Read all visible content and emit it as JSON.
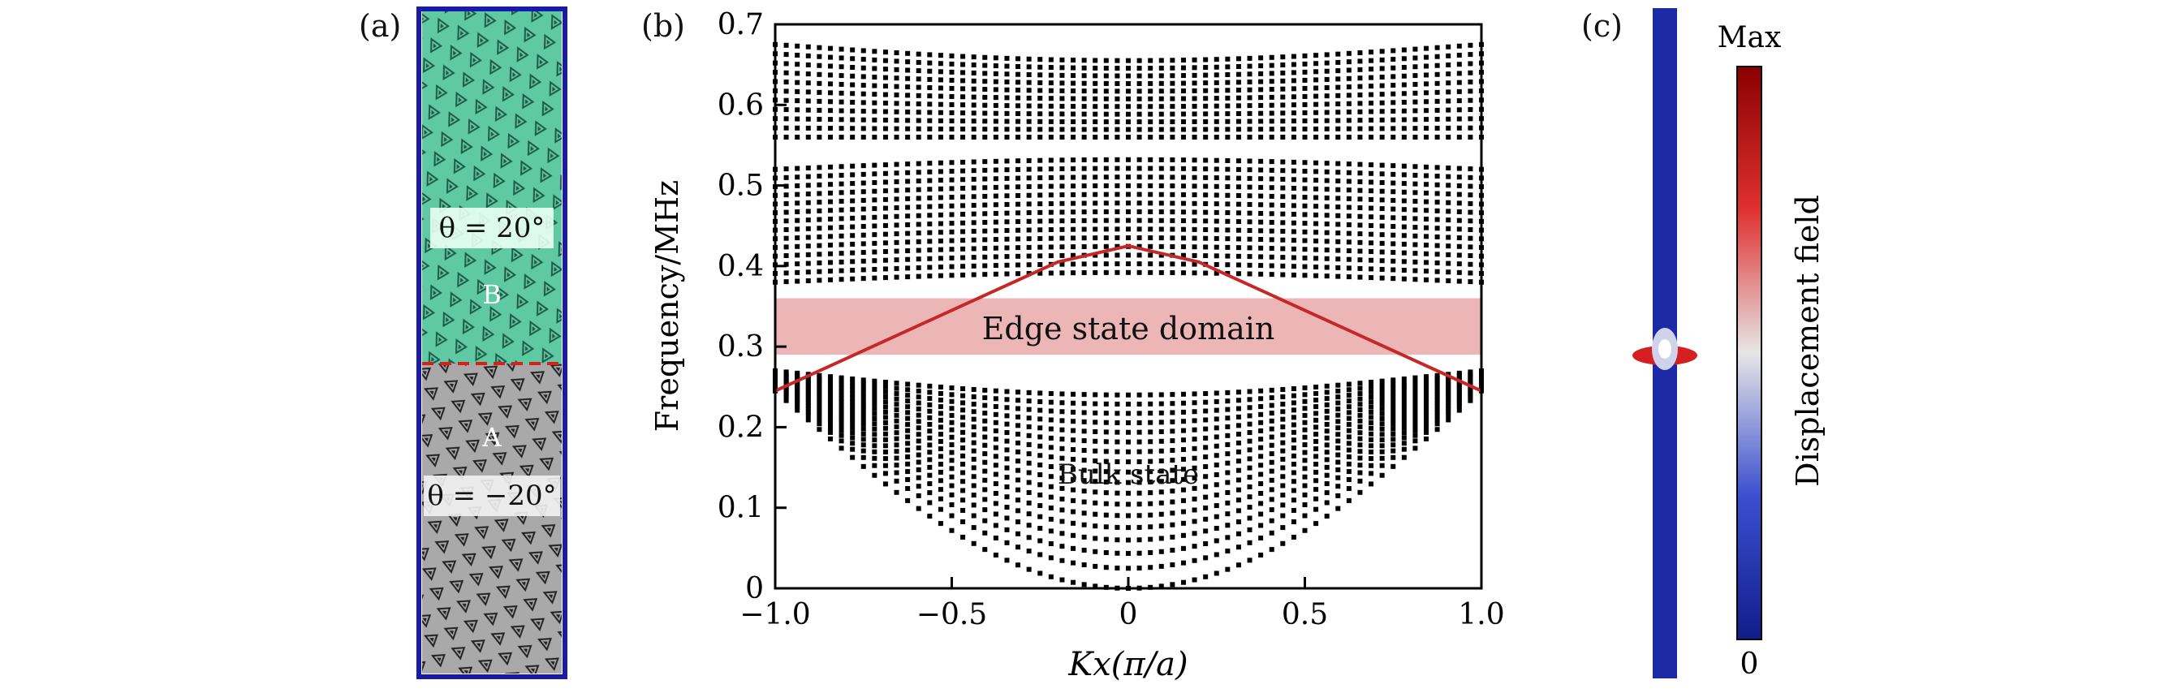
{
  "panels": {
    "a": "(a)",
    "b": "(b)",
    "c": "(c)"
  },
  "panel_a": {
    "region_b_label": "B",
    "region_a_label": "A",
    "theta_b": "θ = 20°",
    "theta_a": "θ = −20°",
    "colors": {
      "region_b": "#5fc9a3",
      "region_a": "#a9a9a9",
      "frame": "#1a1aa8",
      "interface": "#d62020"
    }
  },
  "chart_data": {
    "type": "scatter",
    "xlabel": "Kx(π/a)",
    "ylabel": "Frequency/MHz",
    "xlim": [
      -1.0,
      1.0
    ],
    "ylim": [
      0,
      0.7
    ],
    "xticks": [
      "−1.0",
      "−0.5",
      "0",
      "0.5",
      "1.0"
    ],
    "yticks": [
      "0",
      "0.1",
      "0.2",
      "0.3",
      "0.4",
      "0.5",
      "0.6",
      "0.7"
    ],
    "grid": false,
    "bulk_bands": {
      "lower_band": {
        "y_at_edges": 0.245,
        "y_at_center_bottom": 0.0,
        "top_at_edges": 0.27,
        "top_at_center": 0.24
      },
      "middle_band": {
        "range": [
          0.38,
          0.52
        ]
      },
      "upper_band": {
        "range": [
          0.56,
          0.675
        ]
      }
    },
    "edge_state": {
      "name": "",
      "x": [
        -1.0,
        -0.8,
        -0.6,
        -0.4,
        -0.2,
        0.0,
        0.2,
        0.4,
        0.6,
        0.8,
        1.0
      ],
      "y": [
        0.245,
        0.285,
        0.325,
        0.365,
        0.405,
        0.425,
        0.405,
        0.365,
        0.325,
        0.285,
        0.245
      ],
      "color": "#c62828"
    },
    "highlight_band": {
      "ymin": 0.29,
      "ymax": 0.36,
      "color": "#e9a4a4"
    },
    "annotations": {
      "edge_domain": "Edge state domain",
      "bulk": "Bulk state"
    }
  },
  "panel_c": {
    "colorbar_max": "Max",
    "colorbar_min": "0",
    "colorbar_label": "Displacement field",
    "colors": {
      "strip": "#1c2aa6",
      "high": "#8b0000",
      "mid": "#e6e6e6",
      "low": "#101d8a"
    }
  }
}
